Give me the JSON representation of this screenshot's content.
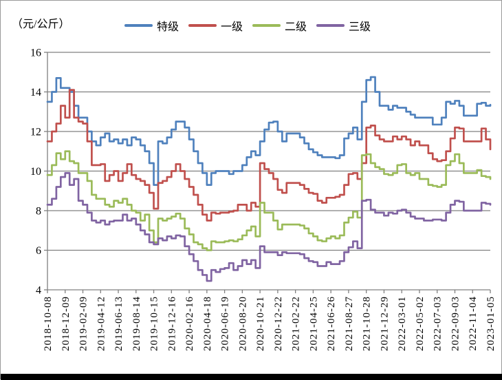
{
  "chart_data": {
    "type": "line",
    "title": "",
    "unit_label": "（元/公斤）",
    "interpolation": "step-after",
    "grid": true,
    "legend_position": "top",
    "ylim": [
      4,
      16
    ],
    "y_ticks": [
      4,
      6,
      8,
      10,
      12,
      14,
      16
    ],
    "x_tick_labels": [
      "2018-10-08",
      "2018-12-09",
      "2019-02-09",
      "2019-04-12",
      "2019-06-13",
      "2019-08-14",
      "2019-10-15",
      "2019-12-16",
      "2020-02-16",
      "2020-04-18",
      "2020-06-19",
      "2020-08-20",
      "2020-10-21",
      "2020-12-22",
      "2021-02-22",
      "2021-04-25",
      "2021-06-26",
      "2021-08-27",
      "2021-10-28",
      "2021-12-29",
      "2022-03-01",
      "2022-05-02",
      "2022-07-03",
      "2022-09-03",
      "2022-11-04",
      "2023-01-05"
    ],
    "series": [
      {
        "name": "特级",
        "key": "special-grade",
        "color": "#4F81BD",
        "values": [
          13.5,
          14.0,
          14.7,
          14.2,
          14.2,
          14.0,
          13.3,
          12.7,
          12.7,
          12.0,
          11.5,
          11.3,
          11.7,
          11.9,
          11.5,
          11.6,
          11.4,
          11.6,
          11.3,
          11.7,
          11.6,
          11.3,
          11.0,
          10.4,
          9.3,
          11.5,
          11.4,
          11.7,
          12.1,
          12.5,
          12.5,
          12.2,
          11.6,
          11.0,
          10.4,
          9.9,
          9.3,
          9.9,
          10.0,
          10.0,
          10.0,
          9.85,
          10.0,
          10.0,
          10.3,
          10.7,
          11.0,
          10.8,
          11.5,
          12.1,
          12.45,
          12.5,
          12.0,
          11.5,
          11.9,
          11.9,
          11.9,
          11.7,
          11.4,
          11.1,
          10.95,
          10.8,
          10.7,
          10.7,
          10.7,
          10.65,
          10.8,
          11.65,
          11.9,
          12.2,
          11.6,
          13.5,
          14.6,
          14.75,
          14.0,
          13.3,
          13.3,
          13.1,
          13.3,
          13.2,
          13.2,
          13.0,
          12.85,
          12.7,
          12.7,
          12.7,
          12.7,
          12.35,
          12.35,
          12.7,
          13.5,
          13.4,
          13.55,
          13.3,
          12.8,
          12.8,
          12.8,
          13.4,
          13.45,
          13.3,
          13.35
        ]
      },
      {
        "name": "一级",
        "key": "first-grade",
        "color": "#C0504D",
        "values": [
          11.5,
          12.0,
          12.4,
          13.3,
          12.7,
          14.1,
          12.7,
          12.5,
          12.4,
          11.5,
          10.3,
          10.3,
          10.35,
          9.5,
          9.8,
          10.0,
          9.5,
          9.9,
          10.35,
          9.8,
          9.6,
          9.5,
          9.3,
          8.9,
          8.1,
          9.4,
          9.5,
          9.7,
          10.0,
          10.35,
          10.0,
          9.6,
          9.2,
          8.8,
          8.3,
          7.8,
          7.5,
          7.9,
          7.85,
          7.9,
          7.9,
          7.95,
          8.0,
          8.3,
          8.3,
          8.0,
          8.4,
          8.2,
          10.4,
          10.1,
          9.9,
          9.6,
          9.05,
          8.9,
          9.4,
          9.4,
          9.4,
          9.3,
          9.1,
          8.9,
          8.85,
          8.5,
          8.4,
          8.65,
          8.65,
          8.7,
          8.8,
          9.3,
          9.85,
          9.9,
          9.6,
          10.4,
          12.2,
          12.3,
          11.8,
          11.6,
          11.5,
          11.5,
          11.75,
          11.6,
          11.75,
          11.6,
          11.3,
          11.5,
          11.3,
          11.3,
          10.9,
          10.6,
          10.5,
          10.55,
          11.0,
          11.65,
          12.2,
          12.15,
          11.5,
          11.5,
          11.5,
          11.5,
          12.15,
          11.6,
          11.1
        ]
      },
      {
        "name": "二级",
        "key": "second-grade",
        "color": "#9BBB59",
        "values": [
          9.8,
          10.3,
          10.9,
          10.6,
          11.0,
          10.5,
          10.4,
          9.9,
          9.9,
          9.5,
          8.8,
          8.6,
          8.6,
          8.3,
          8.2,
          8.5,
          8.4,
          8.6,
          8.3,
          8.0,
          7.9,
          7.5,
          7.8,
          7.0,
          6.4,
          7.6,
          7.5,
          7.6,
          7.7,
          7.85,
          7.6,
          7.1,
          6.8,
          6.4,
          6.3,
          6.1,
          6.0,
          6.45,
          6.4,
          6.4,
          6.45,
          6.5,
          6.45,
          6.55,
          6.75,
          7.0,
          7.2,
          6.7,
          8.4,
          7.9,
          7.9,
          7.5,
          7.05,
          7.3,
          7.3,
          7.3,
          7.3,
          7.25,
          7.1,
          6.85,
          6.7,
          6.5,
          6.45,
          6.6,
          6.7,
          6.6,
          6.75,
          7.4,
          7.65,
          7.95,
          7.65,
          10.8,
          10.85,
          10.4,
          10.2,
          10.1,
          9.85,
          9.8,
          9.9,
          10.3,
          10.35,
          9.9,
          9.8,
          9.9,
          9.6,
          9.6,
          9.3,
          9.25,
          9.2,
          9.3,
          10.3,
          10.5,
          10.85,
          10.4,
          9.9,
          9.9,
          9.9,
          10.05,
          9.75,
          9.7,
          9.6
        ]
      },
      {
        "name": "三级",
        "key": "third-grade",
        "color": "#8064A2",
        "values": [
          8.3,
          8.6,
          9.2,
          9.7,
          9.9,
          9.3,
          9.6,
          8.5,
          8.3,
          7.9,
          7.5,
          7.4,
          7.5,
          7.3,
          7.45,
          7.5,
          7.5,
          7.8,
          7.5,
          7.6,
          7.3,
          7.0,
          6.8,
          6.4,
          6.3,
          6.6,
          6.5,
          6.7,
          6.6,
          6.75,
          6.7,
          6.2,
          5.8,
          5.45,
          5.0,
          4.75,
          4.45,
          5.0,
          4.9,
          5.05,
          5.1,
          5.35,
          5.0,
          5.2,
          5.5,
          5.3,
          5.5,
          5.1,
          6.2,
          5.9,
          5.9,
          5.9,
          5.75,
          5.9,
          5.85,
          5.85,
          5.85,
          5.8,
          5.6,
          5.45,
          5.4,
          5.2,
          5.2,
          5.4,
          5.3,
          5.3,
          5.45,
          5.9,
          6.15,
          6.45,
          6.1,
          8.5,
          8.55,
          8.05,
          7.9,
          7.9,
          7.75,
          7.9,
          7.85,
          8.0,
          8.05,
          7.9,
          7.7,
          7.6,
          7.6,
          7.5,
          7.5,
          7.55,
          7.55,
          7.5,
          7.9,
          8.3,
          8.5,
          8.45,
          8.0,
          8.0,
          8.0,
          8.0,
          8.4,
          8.35,
          8.3
        ]
      }
    ]
  }
}
